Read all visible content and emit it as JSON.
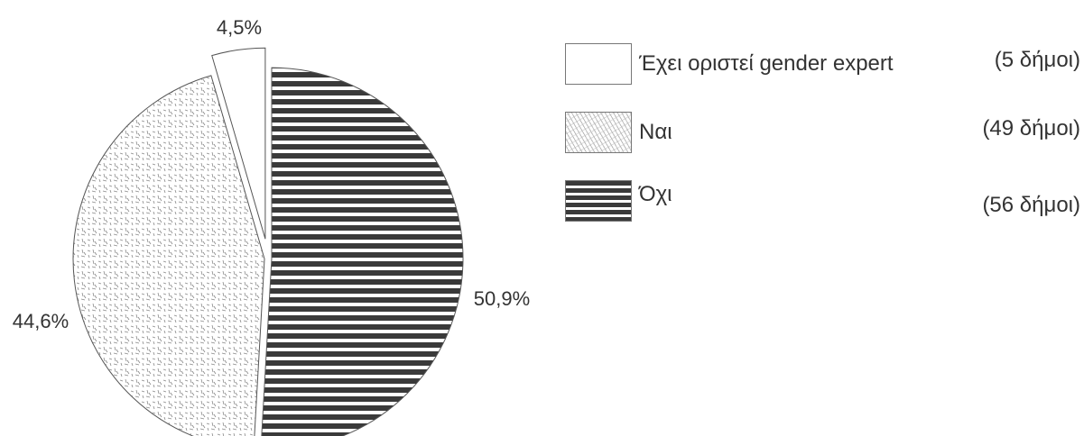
{
  "chart_data": {
    "type": "pie",
    "title": "",
    "slices": [
      {
        "label": "Έχει οριστεί gender expert",
        "value": 4.5,
        "value_label": "4,5%",
        "count_label": "(5 δήμοι)",
        "pattern": "white",
        "exploded": true
      },
      {
        "label": "Ναι",
        "value": 44.6,
        "value_label": "44,6%",
        "count_label": "(49 δήμοι)",
        "pattern": "dots",
        "exploded": false
      },
      {
        "label": "Όχι",
        "value": 50.9,
        "value_label": "50,9%",
        "count_label": "(56 δήμοι)",
        "pattern": "stripes",
        "exploded": false
      }
    ],
    "legend_position": "right",
    "colors": {
      "stripes": "#3a3a3a",
      "dots": "#999999",
      "outline": "#555555"
    }
  }
}
